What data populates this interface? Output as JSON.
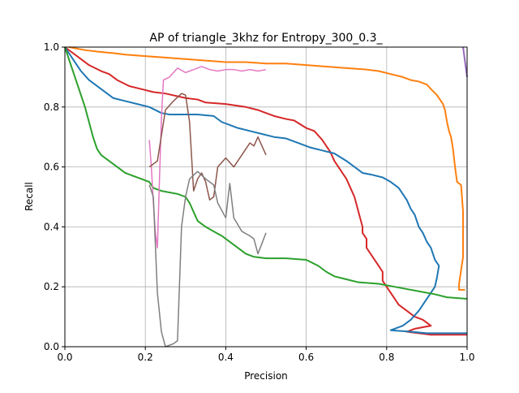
{
  "chart_data": {
    "type": "line",
    "title": "AP of triangle_3khz for Entropy_300_0.3_",
    "xlabel": "Precision",
    "ylabel": "Recall",
    "xlim": [
      0,
      1
    ],
    "ylim": [
      0,
      1
    ],
    "xticks": [
      "0.0",
      "0.2",
      "0.4",
      "0.6",
      "0.8",
      "1.0"
    ],
    "yticks": [
      "0.0",
      "0.2",
      "0.4",
      "0.6",
      "0.8",
      "1.0"
    ],
    "grid": true,
    "legend": "none",
    "series": [
      {
        "color": "#ff7f0e",
        "stroke_width": 2,
        "points": [
          [
            0.01,
            1.0
          ],
          [
            0.05,
            0.99
          ],
          [
            0.08,
            0.985
          ],
          [
            0.12,
            0.98
          ],
          [
            0.15,
            0.975
          ],
          [
            0.2,
            0.97
          ],
          [
            0.25,
            0.965
          ],
          [
            0.3,
            0.96
          ],
          [
            0.35,
            0.955
          ],
          [
            0.4,
            0.95
          ],
          [
            0.45,
            0.95
          ],
          [
            0.5,
            0.945
          ],
          [
            0.55,
            0.945
          ],
          [
            0.6,
            0.94
          ],
          [
            0.65,
            0.935
          ],
          [
            0.7,
            0.93
          ],
          [
            0.75,
            0.925
          ],
          [
            0.78,
            0.92
          ],
          [
            0.81,
            0.91
          ],
          [
            0.84,
            0.9
          ],
          [
            0.86,
            0.89
          ],
          [
            0.88,
            0.885
          ],
          [
            0.9,
            0.875
          ],
          [
            0.91,
            0.86
          ],
          [
            0.925,
            0.84
          ],
          [
            0.94,
            0.81
          ],
          [
            0.945,
            0.79
          ],
          [
            0.95,
            0.75
          ],
          [
            0.955,
            0.72
          ],
          [
            0.96,
            0.7
          ],
          [
            0.965,
            0.66
          ],
          [
            0.97,
            0.6
          ],
          [
            0.975,
            0.55
          ],
          [
            0.985,
            0.54
          ],
          [
            0.99,
            0.45
          ],
          [
            0.99,
            0.3
          ],
          [
            0.98,
            0.21
          ],
          [
            0.98,
            0.19
          ],
          [
            0.995,
            0.19
          ]
        ]
      },
      {
        "color": "#d62728",
        "stroke_width": 2,
        "points": [
          [
            0.0,
            1.0
          ],
          [
            0.03,
            0.97
          ],
          [
            0.06,
            0.94
          ],
          [
            0.09,
            0.92
          ],
          [
            0.11,
            0.91
          ],
          [
            0.13,
            0.89
          ],
          [
            0.16,
            0.87
          ],
          [
            0.19,
            0.86
          ],
          [
            0.22,
            0.85
          ],
          [
            0.25,
            0.845
          ],
          [
            0.3,
            0.83
          ],
          [
            0.33,
            0.825
          ],
          [
            0.35,
            0.815
          ],
          [
            0.4,
            0.81
          ],
          [
            0.45,
            0.8
          ],
          [
            0.48,
            0.79
          ],
          [
            0.5,
            0.78
          ],
          [
            0.52,
            0.77
          ],
          [
            0.55,
            0.76
          ],
          [
            0.57,
            0.755
          ],
          [
            0.6,
            0.73
          ],
          [
            0.62,
            0.72
          ],
          [
            0.64,
            0.69
          ],
          [
            0.65,
            0.67
          ],
          [
            0.66,
            0.65
          ],
          [
            0.67,
            0.62
          ],
          [
            0.68,
            0.6
          ],
          [
            0.69,
            0.58
          ],
          [
            0.7,
            0.56
          ],
          [
            0.71,
            0.53
          ],
          [
            0.72,
            0.5
          ],
          [
            0.73,
            0.45
          ],
          [
            0.74,
            0.4
          ],
          [
            0.74,
            0.38
          ],
          [
            0.75,
            0.36
          ],
          [
            0.75,
            0.33
          ],
          [
            0.76,
            0.31
          ],
          [
            0.77,
            0.29
          ],
          [
            0.78,
            0.27
          ],
          [
            0.79,
            0.25
          ],
          [
            0.79,
            0.22
          ],
          [
            0.8,
            0.2
          ],
          [
            0.81,
            0.18
          ],
          [
            0.82,
            0.16
          ],
          [
            0.83,
            0.14
          ],
          [
            0.85,
            0.12
          ],
          [
            0.87,
            0.1
          ],
          [
            0.89,
            0.09
          ],
          [
            0.91,
            0.07
          ],
          [
            0.87,
            0.06
          ],
          [
            0.85,
            0.05
          ],
          [
            0.88,
            0.045
          ],
          [
            0.91,
            0.04
          ],
          [
            1.0,
            0.04
          ]
        ]
      },
      {
        "color": "#1f77b4",
        "stroke_width": 2,
        "points": [
          [
            0.0,
            1.0
          ],
          [
            0.02,
            0.96
          ],
          [
            0.04,
            0.92
          ],
          [
            0.06,
            0.89
          ],
          [
            0.08,
            0.87
          ],
          [
            0.1,
            0.85
          ],
          [
            0.12,
            0.83
          ],
          [
            0.15,
            0.82
          ],
          [
            0.18,
            0.81
          ],
          [
            0.21,
            0.8
          ],
          [
            0.24,
            0.78
          ],
          [
            0.26,
            0.775
          ],
          [
            0.3,
            0.775
          ],
          [
            0.33,
            0.775
          ],
          [
            0.37,
            0.77
          ],
          [
            0.39,
            0.75
          ],
          [
            0.41,
            0.74
          ],
          [
            0.43,
            0.73
          ],
          [
            0.46,
            0.72
          ],
          [
            0.49,
            0.71
          ],
          [
            0.52,
            0.7
          ],
          [
            0.55,
            0.695
          ],
          [
            0.58,
            0.68
          ],
          [
            0.61,
            0.665
          ],
          [
            0.64,
            0.655
          ],
          [
            0.67,
            0.645
          ],
          [
            0.7,
            0.62
          ],
          [
            0.72,
            0.6
          ],
          [
            0.74,
            0.58
          ],
          [
            0.76,
            0.575
          ],
          [
            0.79,
            0.565
          ],
          [
            0.81,
            0.55
          ],
          [
            0.83,
            0.53
          ],
          [
            0.85,
            0.49
          ],
          [
            0.86,
            0.46
          ],
          [
            0.87,
            0.44
          ],
          [
            0.88,
            0.4
          ],
          [
            0.89,
            0.38
          ],
          [
            0.9,
            0.35
          ],
          [
            0.91,
            0.33
          ],
          [
            0.92,
            0.29
          ],
          [
            0.93,
            0.27
          ],
          [
            0.925,
            0.23
          ],
          [
            0.92,
            0.2
          ],
          [
            0.9,
            0.16
          ],
          [
            0.88,
            0.12
          ],
          [
            0.86,
            0.09
          ],
          [
            0.84,
            0.07
          ],
          [
            0.81,
            0.055
          ],
          [
            0.86,
            0.05
          ],
          [
            0.9,
            0.045
          ],
          [
            0.94,
            0.045
          ],
          [
            1.0,
            0.045
          ]
        ]
      },
      {
        "color": "#2ca02c",
        "stroke_width": 2,
        "points": [
          [
            0.0,
            1.0
          ],
          [
            0.01,
            0.96
          ],
          [
            0.02,
            0.92
          ],
          [
            0.03,
            0.88
          ],
          [
            0.04,
            0.84
          ],
          [
            0.05,
            0.8
          ],
          [
            0.06,
            0.75
          ],
          [
            0.07,
            0.7
          ],
          [
            0.08,
            0.66
          ],
          [
            0.09,
            0.64
          ],
          [
            0.11,
            0.62
          ],
          [
            0.13,
            0.6
          ],
          [
            0.15,
            0.58
          ],
          [
            0.17,
            0.57
          ],
          [
            0.19,
            0.56
          ],
          [
            0.21,
            0.55
          ],
          [
            0.22,
            0.53
          ],
          [
            0.24,
            0.52
          ],
          [
            0.26,
            0.515
          ],
          [
            0.28,
            0.51
          ],
          [
            0.3,
            0.5
          ],
          [
            0.31,
            0.48
          ],
          [
            0.32,
            0.45
          ],
          [
            0.33,
            0.42
          ],
          [
            0.35,
            0.4
          ],
          [
            0.37,
            0.385
          ],
          [
            0.39,
            0.37
          ],
          [
            0.41,
            0.35
          ],
          [
            0.43,
            0.33
          ],
          [
            0.45,
            0.31
          ],
          [
            0.47,
            0.3
          ],
          [
            0.5,
            0.295
          ],
          [
            0.55,
            0.295
          ],
          [
            0.6,
            0.29
          ],
          [
            0.63,
            0.27
          ],
          [
            0.65,
            0.25
          ],
          [
            0.67,
            0.235
          ],
          [
            0.7,
            0.225
          ],
          [
            0.73,
            0.215
          ],
          [
            0.78,
            0.21
          ],
          [
            0.82,
            0.2
          ],
          [
            0.88,
            0.185
          ],
          [
            0.92,
            0.175
          ],
          [
            0.95,
            0.165
          ],
          [
            1.0,
            0.16
          ]
        ]
      },
      {
        "color": "#9467bd",
        "stroke_width": 2,
        "points": [
          [
            0.99,
            1.0
          ],
          [
            0.995,
            0.95
          ],
          [
            1.0,
            0.9
          ]
        ]
      },
      {
        "color": "#e377c2",
        "stroke_width": 1.5,
        "points": [
          [
            0.21,
            0.69
          ],
          [
            0.215,
            0.6
          ],
          [
            0.22,
            0.48
          ],
          [
            0.225,
            0.38
          ],
          [
            0.23,
            0.33
          ],
          [
            0.235,
            0.55
          ],
          [
            0.24,
            0.76
          ],
          [
            0.245,
            0.89
          ],
          [
            0.26,
            0.9
          ],
          [
            0.27,
            0.915
          ],
          [
            0.28,
            0.93
          ],
          [
            0.3,
            0.915
          ],
          [
            0.32,
            0.925
          ],
          [
            0.34,
            0.935
          ],
          [
            0.36,
            0.925
          ],
          [
            0.38,
            0.92
          ],
          [
            0.4,
            0.925
          ],
          [
            0.42,
            0.925
          ],
          [
            0.44,
            0.92
          ],
          [
            0.46,
            0.925
          ],
          [
            0.48,
            0.92
          ],
          [
            0.5,
            0.925
          ]
        ]
      },
      {
        "color": "#8c564b",
        "stroke_width": 1.5,
        "points": [
          [
            0.21,
            0.6
          ],
          [
            0.23,
            0.62
          ],
          [
            0.25,
            0.79
          ],
          [
            0.27,
            0.82
          ],
          [
            0.29,
            0.845
          ],
          [
            0.3,
            0.84
          ],
          [
            0.31,
            0.75
          ],
          [
            0.32,
            0.52
          ],
          [
            0.33,
            0.56
          ],
          [
            0.34,
            0.58
          ],
          [
            0.35,
            0.55
          ],
          [
            0.36,
            0.49
          ],
          [
            0.37,
            0.5
          ],
          [
            0.38,
            0.6
          ],
          [
            0.4,
            0.63
          ],
          [
            0.42,
            0.6
          ],
          [
            0.44,
            0.64
          ],
          [
            0.46,
            0.68
          ],
          [
            0.47,
            0.67
          ],
          [
            0.48,
            0.7
          ],
          [
            0.49,
            0.67
          ],
          [
            0.5,
            0.64
          ]
        ]
      },
      {
        "color": "#7f7f7f",
        "stroke_width": 1.5,
        "points": [
          [
            0.21,
            0.54
          ],
          [
            0.22,
            0.5
          ],
          [
            0.23,
            0.18
          ],
          [
            0.24,
            0.05
          ],
          [
            0.25,
            0.0
          ],
          [
            0.27,
            0.01
          ],
          [
            0.28,
            0.02
          ],
          [
            0.29,
            0.4
          ],
          [
            0.3,
            0.5
          ],
          [
            0.31,
            0.56
          ],
          [
            0.33,
            0.585
          ],
          [
            0.35,
            0.56
          ],
          [
            0.37,
            0.54
          ],
          [
            0.38,
            0.48
          ],
          [
            0.4,
            0.43
          ],
          [
            0.41,
            0.545
          ],
          [
            0.42,
            0.43
          ],
          [
            0.44,
            0.385
          ],
          [
            0.46,
            0.37
          ],
          [
            0.47,
            0.36
          ],
          [
            0.48,
            0.31
          ],
          [
            0.49,
            0.345
          ],
          [
            0.5,
            0.38
          ]
        ]
      }
    ]
  }
}
